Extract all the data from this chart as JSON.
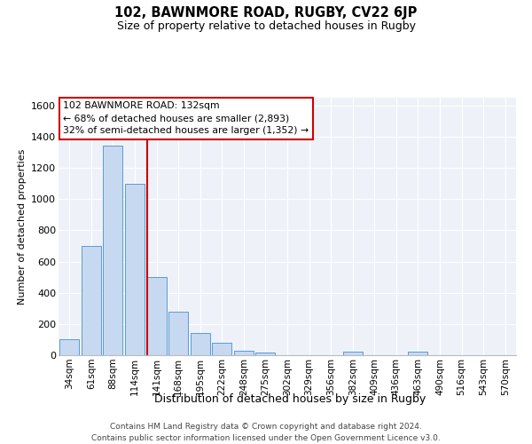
{
  "title": "102, BAWNMORE ROAD, RUGBY, CV22 6JP",
  "subtitle": "Size of property relative to detached houses in Rugby",
  "xlabel": "Distribution of detached houses by size in Rugby",
  "ylabel": "Number of detached properties",
  "categories": [
    "34sqm",
    "61sqm",
    "88sqm",
    "114sqm",
    "141sqm",
    "168sqm",
    "195sqm",
    "222sqm",
    "248sqm",
    "275sqm",
    "302sqm",
    "329sqm",
    "356sqm",
    "382sqm",
    "409sqm",
    "436sqm",
    "463sqm",
    "490sqm",
    "516sqm",
    "543sqm",
    "570sqm"
  ],
  "values": [
    100,
    700,
    1340,
    1100,
    500,
    280,
    140,
    80,
    30,
    15,
    0,
    0,
    0,
    20,
    0,
    0,
    20,
    0,
    0,
    0,
    0
  ],
  "bar_color": "#c6d9f1",
  "bar_edge_color": "#5b9bd5",
  "annotation_text": "102 BAWNMORE ROAD: 132sqm\n← 68% of detached houses are smaller (2,893)\n32% of semi-detached houses are larger (1,352) →",
  "vline_color": "#cc0000",
  "vline_x": 3.57,
  "ylim": [
    0,
    1650
  ],
  "yticks": [
    0,
    200,
    400,
    600,
    800,
    1000,
    1200,
    1400,
    1600
  ],
  "footer_line1": "Contains HM Land Registry data © Crown copyright and database right 2024.",
  "footer_line2": "Contains public sector information licensed under the Open Government Licence v3.0.",
  "bg_color": "#ffffff",
  "plot_bg_color": "#eef2f8"
}
